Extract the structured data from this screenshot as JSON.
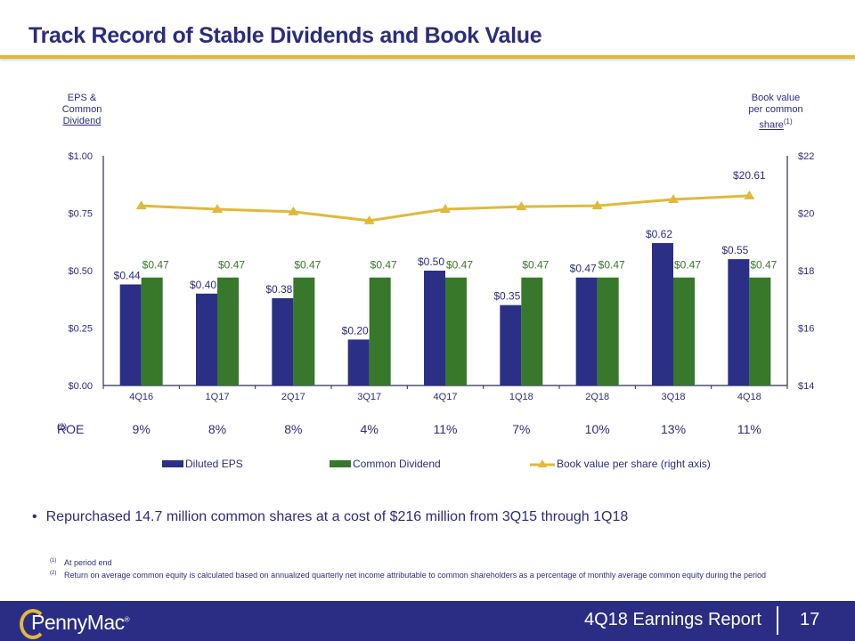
{
  "header": {
    "title": "Track Record of Stable Dividends and Book Value"
  },
  "left_axis_title": {
    "line1": "EPS &",
    "line2": "Common",
    "line3": "Dividend"
  },
  "right_axis_title": {
    "line1": "Book value",
    "line2": "per common",
    "line3": "share",
    "footnote_ref": "(1)"
  },
  "chart_data": {
    "type": "bar",
    "title": "Track Record of Stable Dividends and Book Value",
    "categories": [
      "4Q16",
      "1Q17",
      "2Q17",
      "3Q17",
      "4Q17",
      "1Q18",
      "2Q18",
      "3Q18",
      "4Q18"
    ],
    "series": [
      {
        "name": "Diluted EPS",
        "type": "bar",
        "axis": "left",
        "color": "#2b2f86",
        "values": [
          0.44,
          0.4,
          0.38,
          0.2,
          0.5,
          0.35,
          0.47,
          0.62,
          0.55
        ],
        "labels": [
          "$0.44",
          "$0.40",
          "$0.38",
          "$0.20",
          "$0.50",
          "$0.35",
          "$0.47",
          "$0.62",
          "$0.55"
        ]
      },
      {
        "name": "Common Dividend",
        "type": "bar",
        "axis": "left",
        "color": "#37782a",
        "values": [
          0.47,
          0.47,
          0.47,
          0.47,
          0.47,
          0.47,
          0.47,
          0.47,
          0.47
        ],
        "labels": [
          "$0.47",
          "$0.47",
          "$0.47",
          "$0.47",
          "$0.47",
          "$0.47",
          "$0.47",
          "$0.47",
          "$0.47"
        ]
      },
      {
        "name": "Book value per share (right axis)",
        "type": "line",
        "axis": "right",
        "color": "#e0b93a",
        "marker": "triangle",
        "values": [
          20.26,
          20.14,
          20.05,
          19.74,
          20.14,
          20.23,
          20.26,
          20.48,
          20.61
        ],
        "labels": [
          "",
          "",
          "",
          "",
          "",
          "",
          "",
          "",
          "$20.61"
        ]
      }
    ],
    "y_left": {
      "ylim": [
        0,
        1.0
      ],
      "ticks": [
        "$0.00",
        "$0.25",
        "$0.50",
        "$0.75",
        "$1.00"
      ],
      "tick_values": [
        0,
        0.25,
        0.5,
        0.75,
        1.0
      ]
    },
    "y_right": {
      "ylim": [
        14,
        22
      ],
      "ticks": [
        "$14",
        "$16",
        "$18",
        "$20",
        "$22"
      ],
      "tick_values": [
        14,
        16,
        18,
        20,
        22
      ]
    },
    "xlabel": "",
    "ylabel": "EPS & Common Dividend",
    "ylabel_right": "Book value per common share",
    "grid": false,
    "legend": "bottom"
  },
  "roe": {
    "label": "ROE",
    "footnote_ref": "(2)",
    "values": [
      "9%",
      "8%",
      "8%",
      "4%",
      "11%",
      "7%",
      "10%",
      "13%",
      "11%"
    ]
  },
  "legend": {
    "items": [
      {
        "label": "Diluted EPS",
        "color": "#2b2f86"
      },
      {
        "label": "Common Dividend",
        "color": "#37782a"
      },
      {
        "label": "Book value per share (right axis)",
        "color": "#e0b93a"
      }
    ]
  },
  "bullet": "Repurchased 14.7 million common shares at a cost of $216 million from 3Q15 through 1Q18",
  "footnotes": [
    {
      "ref": "(1)",
      "text": "At period end"
    },
    {
      "ref": "(2)",
      "text": "Return on average common equity is calculated based on annualized quarterly net income attributable to common shareholders as a percentage of monthly average common equity during the period"
    }
  ],
  "footer": {
    "logo_text": "PennyMac",
    "logo_mark": "®",
    "report": "4Q18 Earnings Report",
    "page": "17"
  }
}
